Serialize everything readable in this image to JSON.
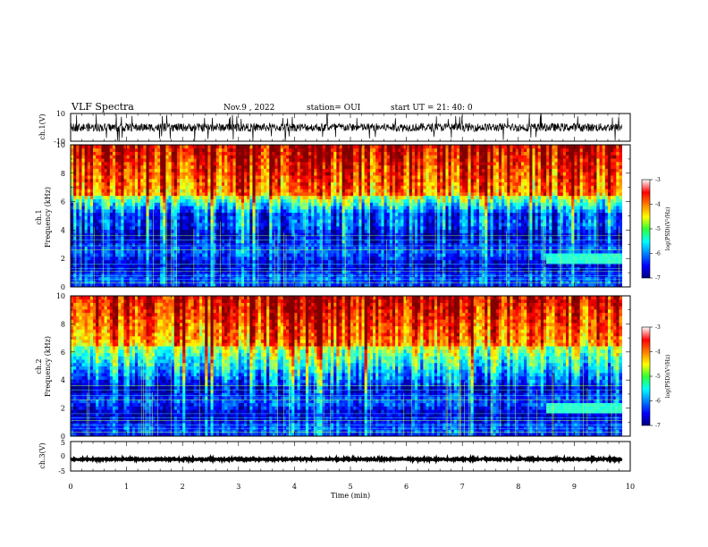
{
  "header": {
    "title": "VLF Spectra",
    "date": "Nov.9 , 2022",
    "station": "station= OUI",
    "start": "start UT = 21: 40: 0"
  },
  "chart_data": [
    {
      "id": "ch1_waveform",
      "type": "line",
      "ylabel": "ch.1(V)",
      "ylim": [
        -10,
        10
      ],
      "yticks": [
        "10",
        "-10"
      ],
      "xlim": [
        0,
        10
      ],
      "description_values": {
        "baseline": 0,
        "typical_amplitude": 3,
        "spike_amplitude": 10
      }
    },
    {
      "id": "ch1_spectrogram",
      "type": "heatmap",
      "ylabel": "ch.1 Frequency (kHz)",
      "ylabel_line1": "ch.1",
      "ylabel_line2": "Frequency (kHz)",
      "ylim": [
        0,
        10
      ],
      "yticks": [
        "0",
        "2",
        "4",
        "6",
        "8",
        "10"
      ],
      "xlim": [
        0,
        9.85
      ],
      "colorbar": {
        "label": "log(PSD)(V²/Hz)",
        "ticks": [
          "-3",
          "-4",
          "-5",
          "-6",
          "-7"
        ],
        "range": [
          -7,
          -3
        ]
      },
      "band_edges_khz": {
        "low_level_top": 5.0,
        "mid_band": [
          5.0,
          6.5
        ],
        "high_level_from": 6.5
      },
      "event": {
        "start_min": 8.5,
        "end_min": 9.8,
        "freq_khz": 2.0
      }
    },
    {
      "id": "ch2_spectrogram",
      "type": "heatmap",
      "ylabel": "ch.2 Frequency (kHz)",
      "ylabel_line1": "ch.2",
      "ylabel_line2": "Frequency (kHz)",
      "ylim": [
        0,
        10
      ],
      "yticks": [
        "0",
        "2",
        "4",
        "6",
        "8",
        "10"
      ],
      "xlim": [
        0,
        9.85
      ],
      "colorbar": {
        "label": "log(PSD)(V²/Hz)",
        "ticks": [
          "-3",
          "-4",
          "-5",
          "-6",
          "-7"
        ],
        "range": [
          -7,
          -3
        ]
      },
      "band_edges_khz": {
        "low_level_top": 3.5,
        "mid_band": [
          3.5,
          6.5
        ],
        "high_level_from": 6.5
      },
      "event": {
        "start_min": 8.5,
        "end_min": 9.8,
        "freq_khz": 2.0
      }
    },
    {
      "id": "ch3_waveform",
      "type": "line",
      "ylabel": "ch.3(V)",
      "ylim": [
        -5,
        5
      ],
      "yticks": [
        "5",
        "0",
        "-5"
      ],
      "xlim": [
        0,
        10
      ],
      "description_values": {
        "baseline": -1,
        "typical_amplitude": 0.3
      }
    }
  ],
  "xaxis": {
    "label": "Time (min)",
    "ticks": [
      "0",
      "1",
      "2",
      "3",
      "4",
      "5",
      "6",
      "7",
      "8",
      "9",
      "10"
    ],
    "range": [
      0,
      10
    ]
  },
  "colors": {
    "jet_low": "#00008f",
    "jet_high": "#8f0000"
  }
}
